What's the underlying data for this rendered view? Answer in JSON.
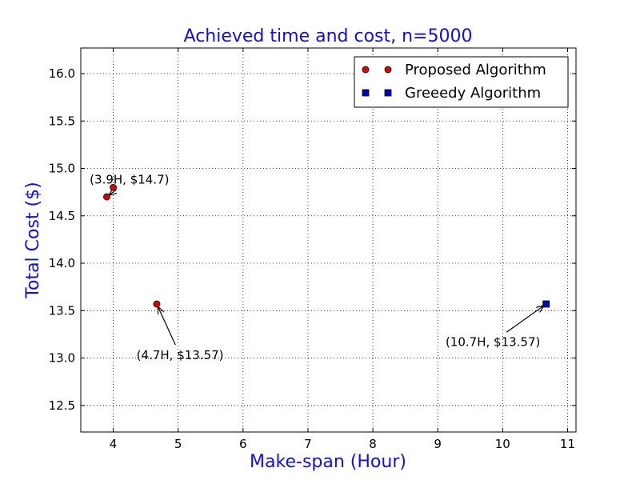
{
  "chart_data": {
    "type": "scatter",
    "title": "Achieved time and cost, n=5000",
    "xlabel": "Make-span (Hour)",
    "ylabel": "Total Cost ($)",
    "xlim": [
      3.5,
      11.13
    ],
    "ylim": [
      12.22,
      16.27
    ],
    "xticks": [
      4,
      5,
      6,
      7,
      8,
      9,
      10,
      11
    ],
    "yticks": [
      12.5,
      13.0,
      13.5,
      14.0,
      14.5,
      15.0,
      15.5,
      16.0
    ],
    "grid": true,
    "legend_position": "top-right",
    "series": [
      {
        "name": "Proposed Algorithm",
        "marker": "circle",
        "color": "#e00000",
        "points": [
          {
            "x": 4.0,
            "y": 14.8
          },
          {
            "x": 3.9,
            "y": 14.7
          },
          {
            "x": 4.67,
            "y": 13.57
          }
        ]
      },
      {
        "name": "Greeedy Algorithm",
        "marker": "square",
        "color": "#0000d0",
        "points": [
          {
            "x": 10.67,
            "y": 13.57
          }
        ]
      }
    ],
    "annotations": [
      {
        "text": "(3.9H, $14.7)",
        "point": {
          "x": 3.9,
          "y": 14.7
        },
        "text_at": {
          "x": 4.25,
          "y": 14.88
        }
      },
      {
        "text": "(4.7H, $13.57)",
        "point": {
          "x": 4.67,
          "y": 13.57
        },
        "text_at": {
          "x": 5.03,
          "y": 13.03
        }
      },
      {
        "text": "(10.7H, $13.57)",
        "point": {
          "x": 10.67,
          "y": 13.57
        },
        "text_at": {
          "x": 9.85,
          "y": 13.17
        }
      }
    ]
  }
}
